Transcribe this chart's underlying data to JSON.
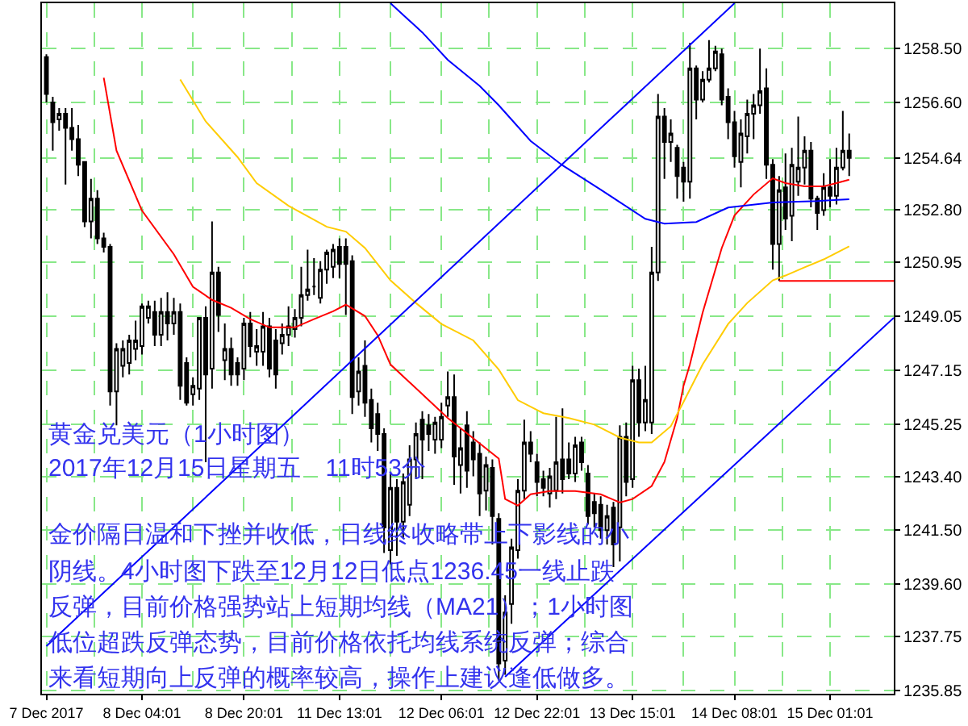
{
  "chart_data": {
    "type": "candlestick",
    "categories": [
      "7 Dec 2017",
      null,
      null,
      null,
      null,
      null,
      null,
      null,
      null,
      null,
      null,
      null,
      null,
      null,
      null,
      "8 Dec 04:01",
      null,
      null,
      null,
      null,
      null,
      null,
      null,
      null,
      null,
      null,
      null,
      null,
      null,
      null,
      null,
      "8 Dec 20:01",
      null,
      null,
      null,
      null,
      null,
      null,
      null,
      null,
      null,
      null,
      null,
      null,
      null,
      null,
      "11 Dec 13:01",
      null,
      null,
      null,
      null,
      null,
      null,
      null,
      null,
      null,
      null,
      null,
      null,
      null,
      null,
      null,
      "12 Dec 06:01",
      null,
      null,
      null,
      null,
      null,
      null,
      null,
      null,
      null,
      null,
      null,
      null,
      null,
      null,
      "12 Dec 22:01",
      null,
      null,
      null,
      null,
      null,
      null,
      null,
      null,
      null,
      null,
      null,
      null,
      null,
      null,
      "13 Dec 15:01",
      null,
      null,
      null,
      null,
      null,
      null,
      null,
      null,
      null,
      null,
      null,
      null,
      null,
      null,
      null,
      "14 Dec 08:01",
      null,
      null,
      null,
      null,
      null,
      null,
      null,
      null,
      null,
      null,
      null,
      null,
      null,
      null,
      "15 Dec 01:01",
      null,
      null,
      null,
      null,
      null,
      null,
      null,
      null,
      null,
      null
    ],
    "ohlc": [
      [
        1258.2,
        1258.3,
        1256.6,
        1256.9
      ],
      [
        1256.6,
        1256.8,
        1254.9,
        1255.9
      ],
      [
        1256.0,
        1256.4,
        1255.6,
        1256.2
      ],
      [
        1256.2,
        1256.4,
        1253.7,
        1255.7
      ],
      [
        1255.7,
        1256.4,
        1254.9,
        1255.3
      ],
      [
        1255.3,
        1255.8,
        1254.0,
        1254.4
      ],
      [
        1254.5,
        1254.5,
        1252.2,
        1252.4
      ],
      [
        1252.4,
        1253.9,
        1251.8,
        1253.2
      ],
      [
        1253.2,
        1253.5,
        1251.6,
        1251.8
      ],
      [
        1251.8,
        1252.0,
        1251.3,
        1251.5
      ],
      [
        1251.5,
        1251.6,
        1245.9,
        1246.4
      ],
      [
        1246.4,
        1248.1,
        1245.2,
        1247.9
      ],
      [
        1247.3,
        1248.2,
        1246.9,
        1247.9
      ],
      [
        1247.4,
        1248.4,
        1247.0,
        1248.2
      ],
      [
        1247.9,
        1248.9,
        1247.5,
        1248.2
      ],
      [
        1248.0,
        1249.5,
        1247.7,
        1249.4
      ],
      [
        1249.0,
        1249.6,
        1248.8,
        1249.4
      ],
      [
        1249.2,
        1249.6,
        1248.0,
        1248.4
      ],
      [
        1248.4,
        1249.7,
        1248.0,
        1249.2
      ],
      [
        1249.2,
        1249.9,
        1248.2,
        1248.8
      ],
      [
        1248.8,
        1249.7,
        1248.4,
        1249.2
      ],
      [
        1249.2,
        1249.5,
        1246.1,
        1246.6
      ],
      [
        1247.4,
        1247.6,
        1245.9,
        1246.0
      ],
      [
        1246.3,
        1246.9,
        1245.9,
        1246.6
      ],
      [
        1246.5,
        1249.0,
        1246.1,
        1249.0
      ],
      [
        1249.0,
        1249.4,
        1243.9,
        1247.0
      ],
      [
        1247.2,
        1252.4,
        1246.5,
        1250.6
      ],
      [
        1250.6,
        1250.8,
        1248.5,
        1249.1
      ],
      [
        1247.5,
        1248.8,
        1246.8,
        1247.9
      ],
      [
        1247.9,
        1248.3,
        1246.6,
        1247.0
      ],
      [
        1247.4,
        1247.6,
        1246.6,
        1247.0
      ],
      [
        1247.2,
        1249.0,
        1246.8,
        1248.8
      ],
      [
        1248.8,
        1249.2,
        1247.6,
        1248.0
      ],
      [
        1247.8,
        1248.6,
        1247.3,
        1248.0
      ],
      [
        1247.8,
        1249.2,
        1247.3,
        1248.7
      ],
      [
        1248.7,
        1249.0,
        1246.9,
        1247.2
      ],
      [
        1248.2,
        1248.6,
        1246.5,
        1247.0
      ],
      [
        1248.1,
        1248.8,
        1247.7,
        1248.4
      ],
      [
        1248.4,
        1249.4,
        1248.0,
        1248.7
      ],
      [
        1248.6,
        1249.3,
        1248.3,
        1249.0
      ],
      [
        1249.0,
        1250.8,
        1248.7,
        1249.8
      ],
      [
        1249.8,
        1251.4,
        1249.6,
        1250.0
      ],
      [
        1250.1,
        1251.1,
        1249.8,
        1250.1
      ],
      [
        1249.7,
        1251.0,
        1249.5,
        1250.7
      ],
      [
        1250.7,
        1251.4,
        1250.2,
        1251.3
      ],
      [
        1250.8,
        1251.6,
        1250.4,
        1251.4
      ],
      [
        1251.5,
        1251.8,
        1250.4,
        1250.9
      ],
      [
        1251.5,
        1251.8,
        1249.1,
        1250.9
      ],
      [
        1251.0,
        1251.2,
        1245.6,
        1246.2
      ],
      [
        1246.4,
        1247.6,
        1245.9,
        1247.1
      ],
      [
        1247.3,
        1248.2,
        1245.5,
        1246.0
      ],
      [
        1246.1,
        1246.5,
        1244.6,
        1245.1
      ],
      [
        1245.6,
        1246.0,
        1244.3,
        1244.9
      ],
      [
        1244.9,
        1245.1,
        1240.7,
        1241.6
      ],
      [
        1240.8,
        1243.5,
        1240.3,
        1243.0
      ],
      [
        1243.0,
        1243.3,
        1240.6,
        1241.8
      ],
      [
        1241.8,
        1243.5,
        1241.2,
        1243.2
      ],
      [
        1242.4,
        1244.5,
        1242.0,
        1244.0
      ],
      [
        1244.0,
        1245.3,
        1243.3,
        1244.9
      ],
      [
        1245.4,
        1245.7,
        1243.3,
        1244.7
      ],
      [
        1245.2,
        1245.6,
        1244.3,
        1244.9
      ],
      [
        1244.7,
        1245.5,
        1244.2,
        1245.3
      ],
      [
        1244.7,
        1246.0,
        1244.4,
        1245.5
      ],
      [
        1245.9,
        1247.1,
        1245.5,
        1246.2
      ],
      [
        1246.2,
        1247.0,
        1243.1,
        1244.1
      ],
      [
        1243.8,
        1245.1,
        1242.8,
        1244.4
      ],
      [
        1245.2,
        1245.7,
        1243.0,
        1243.6
      ],
      [
        1244.6,
        1245.0,
        1243.4,
        1244.0
      ],
      [
        1244.2,
        1244.6,
        1242.0,
        1242.8
      ],
      [
        1242.9,
        1244.1,
        1242.2,
        1243.8
      ],
      [
        1243.7,
        1244.0,
        1241.0,
        1242.0
      ],
      [
        1241.9,
        1242.1,
        1236.2,
        1236.8
      ],
      [
        1236.9,
        1239.2,
        1236.4,
        1238.6
      ],
      [
        1238.9,
        1241.2,
        1238.2,
        1240.9
      ],
      [
        1240.8,
        1243.3,
        1240.5,
        1242.9
      ],
      [
        1242.9,
        1245.4,
        1242.6,
        1244.6
      ],
      [
        1244.6,
        1245.0,
        1243.9,
        1244.2
      ],
      [
        1243.9,
        1244.2,
        1242.7,
        1243.2
      ],
      [
        1243.3,
        1243.6,
        1242.7,
        1243.0
      ],
      [
        1242.8,
        1243.7,
        1242.3,
        1243.4
      ],
      [
        1242.9,
        1245.5,
        1242.6,
        1243.9
      ],
      [
        1244.0,
        1245.8,
        1242.8,
        1243.3
      ],
      [
        1244.0,
        1244.6,
        1243.3,
        1243.5
      ],
      [
        1243.5,
        1244.8,
        1243.2,
        1244.5
      ],
      [
        1244.6,
        1244.8,
        1243.6,
        1243.9
      ],
      [
        1243.5,
        1243.8,
        1241.7,
        1242.0
      ],
      [
        1242.5,
        1242.8,
        1241.6,
        1242.1
      ],
      [
        1242.4,
        1242.7,
        1241.2,
        1241.5
      ],
      [
        1241.5,
        1242.4,
        1241.0,
        1242.0
      ],
      [
        1242.3,
        1242.5,
        1240.2,
        1241.0
      ],
      [
        1241.6,
        1245.2,
        1240.4,
        1244.8
      ],
      [
        1244.8,
        1245.3,
        1242.7,
        1243.2
      ],
      [
        1243.3,
        1247.3,
        1243.0,
        1246.8
      ],
      [
        1246.8,
        1247.2,
        1244.8,
        1245.3
      ],
      [
        1245.3,
        1247.3,
        1245.0,
        1246.1
      ],
      [
        1245.3,
        1251.5,
        1244.9,
        1250.6
      ],
      [
        1250.6,
        1256.9,
        1250.3,
        1256.1
      ],
      [
        1256.1,
        1256.4,
        1253.9,
        1255.2
      ],
      [
        1255.2,
        1256.0,
        1254.5,
        1255.5
      ],
      [
        1255.0,
        1255.1,
        1253.2,
        1254.0
      ],
      [
        1254.3,
        1254.5,
        1253.1,
        1253.8
      ],
      [
        1253.8,
        1258.7,
        1253.2,
        1257.8
      ],
      [
        1257.8,
        1257.9,
        1256.0,
        1256.7
      ],
      [
        1256.7,
        1257.7,
        1256.6,
        1257.4
      ],
      [
        1257.4,
        1258.8,
        1257.3,
        1257.8
      ],
      [
        1257.8,
        1258.6,
        1257.7,
        1258.4
      ],
      [
        1258.3,
        1258.5,
        1256.5,
        1256.7
      ],
      [
        1256.8,
        1257.1,
        1255.3,
        1255.9
      ],
      [
        1255.9,
        1256.3,
        1254.3,
        1254.7
      ],
      [
        1254.5,
        1256.0,
        1253.6,
        1255.5
      ],
      [
        1255.4,
        1256.7,
        1254.8,
        1256.2
      ],
      [
        1256.2,
        1256.9,
        1255.3,
        1256.5
      ],
      [
        1256.5,
        1258.5,
        1256.2,
        1257.0
      ],
      [
        1257.1,
        1257.8,
        1253.9,
        1254.4
      ],
      [
        1254.4,
        1254.6,
        1250.7,
        1251.6
      ],
      [
        1251.6,
        1254.0,
        1250.3,
        1253.5
      ],
      [
        1253.6,
        1254.8,
        1252.1,
        1252.5
      ],
      [
        1252.6,
        1255.0,
        1251.7,
        1254.4
      ],
      [
        1253.8,
        1256.1,
        1253.3,
        1254.3
      ],
      [
        1254.3,
        1255.4,
        1253.7,
        1254.9
      ],
      [
        1254.9,
        1255.2,
        1252.9,
        1253.2
      ],
      [
        1253.2,
        1253.3,
        1252.1,
        1252.7
      ],
      [
        1252.8,
        1254.1,
        1252.6,
        1253.6
      ],
      [
        1253.6,
        1254.6,
        1252.9,
        1253.3
      ],
      [
        1253.3,
        1255.0,
        1253.0,
        1254.3
      ],
      [
        1254.3,
        1256.3,
        1254.2,
        1254.9
      ],
      [
        1254.9,
        1255.5,
        1254.0,
        1254.64
      ],
      null,
      null,
      null,
      null,
      null,
      null,
      null
    ],
    "series": [
      {
        "type": "line",
        "color": "#ff0000",
        "values": [
          null,
          null,
          null,
          null,
          null,
          null,
          null,
          null,
          null,
          1257.47,
          null,
          1254.9,
          null,
          null,
          null,
          1252.78,
          null,
          null,
          null,
          null,
          1251.24,
          null,
          null,
          1250.09,
          null,
          null,
          1249.63,
          null,
          null,
          1249.35,
          null,
          null,
          1248.95,
          null,
          null,
          1248.66,
          null,
          null,
          null,
          1248.66,
          null,
          null,
          1248.95,
          null,
          null,
          1249.23,
          null,
          1249.46,
          null,
          null,
          1249.06,
          null,
          1248.38,
          null,
          1247.35,
          null,
          null,
          null,
          null,
          null,
          null,
          null,
          null,
          1245.46,
          null,
          null,
          null,
          null,
          null,
          null,
          null,
          1244.03,
          1242.6,
          null,
          1242.37,
          null,
          1242.77,
          null,
          null,
          1242.88,
          null,
          null,
          null,
          1242.88,
          null,
          null,
          null,
          1242.77,
          null,
          null,
          1242.48,
          null,
          1242.6,
          null,
          null,
          1243.06,
          null,
          1243.91,
          null,
          1245.46,
          1246.6,
          1247.35,
          null,
          1249.18,
          null,
          null,
          1251.46,
          null,
          1252.61,
          null,
          null,
          1253.35,
          null,
          null,
          1253.92,
          null,
          1253.75,
          null,
          null,
          1253.64,
          null,
          null,
          1253.64,
          null,
          1253.75,
          null,
          1253.87,
          null,
          null,
          null,
          null,
          null,
          null,
          null
        ]
      },
      {
        "type": "line",
        "color": "#ffcc00",
        "values": [
          null,
          null,
          null,
          null,
          null,
          null,
          null,
          null,
          null,
          null,
          null,
          null,
          null,
          null,
          null,
          null,
          null,
          null,
          null,
          null,
          null,
          1257.41,
          null,
          null,
          null,
          1255.93,
          null,
          null,
          null,
          null,
          1254.67,
          null,
          null,
          1253.75,
          null,
          null,
          null,
          null,
          1252.95,
          null,
          null,
          null,
          null,
          null,
          1252.21,
          null,
          null,
          1252.04,
          null,
          null,
          1251.46,
          null,
          null,
          null,
          1250.32,
          null,
          null,
          null,
          1249.52,
          null,
          null,
          null,
          1248.78,
          null,
          null,
          null,
          null,
          1248.2,
          null,
          null,
          null,
          1247.17,
          null,
          null,
          1246.09,
          null,
          null,
          null,
          1245.63,
          null,
          null,
          null,
          1245.46,
          null,
          null,
          null,
          1245.23,
          null,
          null,
          null,
          1244.77,
          null,
          null,
          1244.6,
          null,
          1244.6,
          null,
          null,
          1245.17,
          null,
          1246.03,
          null,
          null,
          1247.35,
          null,
          null,
          null,
          1248.78,
          null,
          null,
          1249.52,
          null,
          null,
          null,
          1250.32,
          null,
          1250.49,
          null,
          null,
          1250.78,
          null,
          null,
          1251.06,
          null,
          null,
          null,
          1251.52,
          null,
          null,
          null,
          null,
          null,
          null,
          null
        ]
      },
      {
        "type": "line",
        "color": "#0000ff",
        "values": [
          null,
          null,
          null,
          null,
          null,
          null,
          null,
          null,
          null,
          null,
          null,
          null,
          null,
          null,
          null,
          null,
          null,
          null,
          null,
          null,
          null,
          null,
          null,
          null,
          null,
          null,
          null,
          null,
          null,
          null,
          null,
          null,
          null,
          null,
          null,
          null,
          null,
          null,
          null,
          null,
          null,
          null,
          null,
          null,
          null,
          null,
          null,
          null,
          null,
          null,
          null,
          null,
          null,
          null,
          1260.1,
          null,
          null,
          null,
          null,
          1259.07,
          null,
          null,
          null,
          1258.1,
          null,
          null,
          null,
          null,
          1257.18,
          null,
          null,
          1256.5,
          null,
          null,
          null,
          null,
          1255.24,
          null,
          null,
          null,
          null,
          1254.38,
          null,
          null,
          null,
          null,
          null,
          1253.52,
          null,
          null,
          null,
          null,
          null,
          null,
          1252.49,
          null,
          null,
          1252.32,
          null,
          null,
          null,
          null,
          1252.38,
          null,
          null,
          null,
          null,
          1252.89,
          null,
          null,
          null,
          null,
          null,
          null,
          1253.07,
          null,
          null,
          null,
          null,
          null,
          null,
          1253.12,
          null,
          null,
          null,
          null,
          1253.18,
          null,
          null,
          null,
          null,
          null,
          null,
          null
        ]
      },
      {
        "type": "line",
        "color": "#0000ff",
        "values": [
          1237.41,
          null,
          null,
          null,
          null,
          null,
          null,
          null,
          null,
          null,
          null,
          null,
          null,
          null,
          null,
          null,
          null,
          null,
          null,
          null,
          null,
          null,
          null,
          null,
          null,
          null,
          null,
          null,
          null,
          null,
          null,
          null,
          null,
          null,
          null,
          null,
          null,
          null,
          null,
          null,
          null,
          null,
          null,
          null,
          null,
          null,
          null,
          null,
          null,
          null,
          null,
          null,
          null,
          null,
          null,
          null,
          null,
          null,
          null,
          null,
          null,
          null,
          null,
          null,
          null,
          null,
          null,
          null,
          null,
          null,
          null,
          null,
          null,
          null,
          null,
          null,
          null,
          null,
          null,
          null,
          null,
          null,
          null,
          null,
          null,
          null,
          null,
          null,
          null,
          null,
          null,
          null,
          null,
          null,
          null,
          null,
          null,
          null,
          null,
          null,
          null,
          null,
          null,
          null,
          null,
          null,
          null,
          null,
          1260.1,
          null,
          null,
          null,
          null,
          null,
          null,
          null,
          null,
          null,
          null,
          null,
          null,
          null,
          null,
          null,
          null,
          null,
          null,
          null,
          null,
          null,
          null,
          null,
          null,
          null
        ]
      },
      {
        "type": "line",
        "color": "#0000ff",
        "values": [
          null,
          null,
          null,
          null,
          null,
          null,
          null,
          null,
          null,
          null,
          null,
          null,
          null,
          null,
          null,
          null,
          null,
          null,
          null,
          null,
          null,
          null,
          null,
          null,
          null,
          null,
          null,
          null,
          null,
          null,
          null,
          null,
          null,
          null,
          null,
          null,
          null,
          null,
          null,
          null,
          null,
          null,
          null,
          null,
          null,
          null,
          null,
          null,
          null,
          null,
          null,
          null,
          null,
          null,
          null,
          null,
          null,
          null,
          null,
          null,
          null,
          null,
          null,
          null,
          null,
          null,
          null,
          null,
          null,
          null,
          null,
          null,
          1236.33,
          null,
          null,
          null,
          null,
          null,
          null,
          null,
          null,
          null,
          null,
          null,
          null,
          null,
          null,
          null,
          null,
          null,
          null,
          null,
          null,
          null,
          null,
          null,
          null,
          null,
          null,
          null,
          null,
          null,
          null,
          null,
          null,
          null,
          null,
          null,
          null,
          null,
          null,
          null,
          null,
          null,
          null,
          null,
          null,
          null,
          null,
          null,
          null,
          null,
          null,
          null,
          null,
          null,
          null,
          null,
          null,
          null,
          null,
          null,
          null,
          1249.0
        ]
      },
      {
        "type": "line",
        "color": "#ff0000",
        "values": [
          null,
          null,
          null,
          null,
          null,
          null,
          null,
          null,
          null,
          null,
          null,
          null,
          null,
          null,
          null,
          null,
          null,
          null,
          null,
          null,
          null,
          null,
          null,
          null,
          null,
          null,
          null,
          null,
          null,
          null,
          null,
          null,
          null,
          null,
          null,
          null,
          null,
          null,
          null,
          null,
          null,
          null,
          null,
          null,
          null,
          null,
          null,
          null,
          null,
          null,
          null,
          null,
          null,
          null,
          null,
          null,
          null,
          null,
          null,
          null,
          null,
          null,
          null,
          null,
          null,
          null,
          null,
          null,
          null,
          null,
          null,
          null,
          null,
          null,
          null,
          null,
          null,
          null,
          null,
          null,
          null,
          null,
          null,
          null,
          null,
          null,
          null,
          null,
          null,
          null,
          null,
          null,
          null,
          null,
          null,
          null,
          null,
          null,
          null,
          null,
          null,
          null,
          null,
          null,
          null,
          null,
          null,
          null,
          null,
          null,
          null,
          null,
          null,
          null,
          null,
          1250.3,
          null,
          null,
          null,
          null,
          null,
          null,
          null,
          null,
          null,
          null,
          null,
          null,
          null,
          null,
          null,
          null,
          null,
          1250.3
        ]
      }
    ],
    "ylim": [
      1235.73,
      1260.1
    ],
    "yticks": [
      {
        "value": 1258.5,
        "label": "1258.50"
      },
      {
        "value": 1256.6,
        "label": "1256.60"
      },
      1254.64,
      {
        "value": 1252.8,
        "label": "1252.80"
      },
      1250.95,
      1249.05,
      1247.15,
      1245.25,
      {
        "value": 1243.4,
        "label": "1243.40"
      },
      {
        "value": 1241.5,
        "label": "1241.50"
      },
      {
        "value": 1239.6,
        "label": "1239.60"
      },
      1237.75,
      1235.85
    ],
    "grid": true,
    "annotations": [
      "黄金兑美元（1小时图）",
      "2017年12月15日星期五　11时53分",
      "金价隔日温和下挫并收低，日线终收略带上下影线的小",
      "阴线。4小时图下跌至12月12日低点1236.45一线止跌",
      "反弹，目前价格强势站上短期均线（MA21）；1小时图",
      "低位超跌反弹态势，目前价格依托均线系统反弹；综合",
      "来看短期向上反弹的概率较高，操作上建议逢低做多。"
    ]
  }
}
